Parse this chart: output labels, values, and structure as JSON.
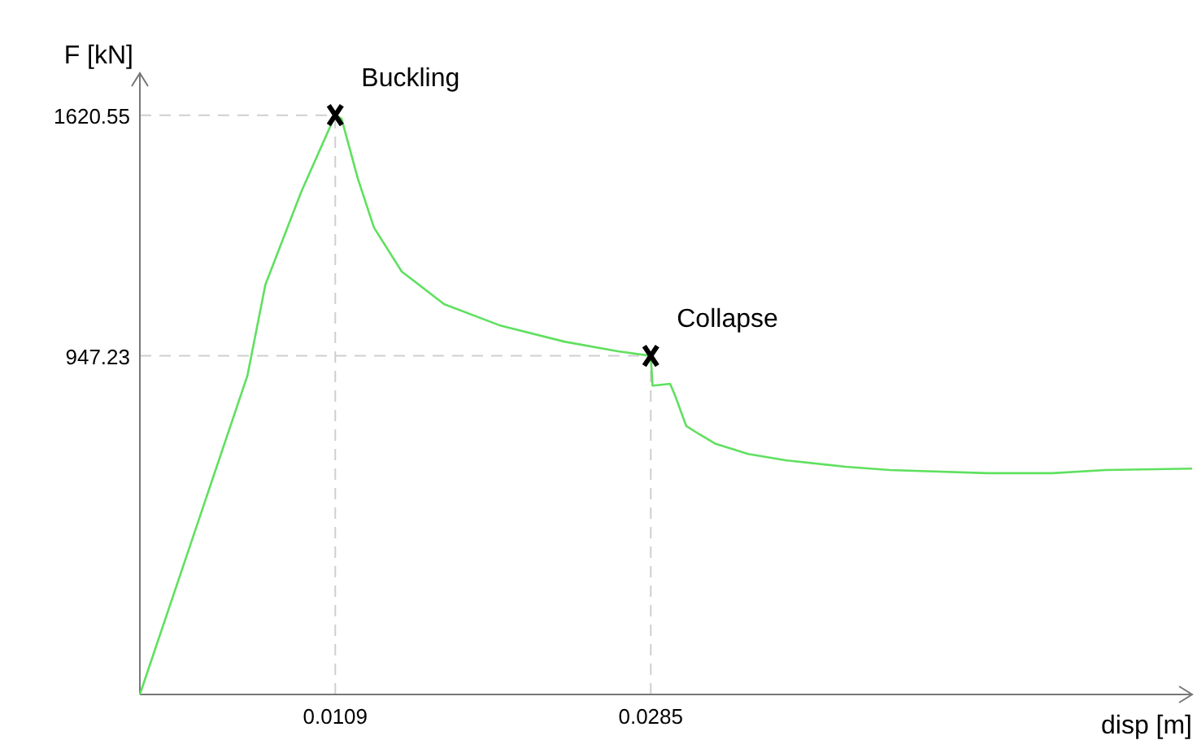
{
  "chart_data": {
    "type": "line",
    "xlabel": "disp [m]",
    "ylabel": "F [kN]",
    "xlim": [
      0,
      0.0587
    ],
    "ylim": [
      0,
      1738
    ],
    "xticks": [
      0.0109,
      0.0285
    ],
    "yticks": [
      947.23,
      1620.55
    ],
    "marker": "none",
    "line_style": "solid",
    "ref_lines": [
      {
        "axis": "y",
        "value": 1620.55,
        "color": "#cfcfcf",
        "line_style": "dashed"
      },
      {
        "axis": "x",
        "value": 0.0109,
        "color": "#cfcfcf",
        "line_style": "dashed"
      },
      {
        "axis": "y",
        "value": 947.23,
        "color": "#cfcfcf",
        "line_style": "dashed"
      },
      {
        "axis": "x",
        "value": 0.0285,
        "color": "#cfcfcf",
        "line_style": "dashed"
      }
    ],
    "annotations": [
      {
        "text": "Buckling",
        "x": 0.0109,
        "y": 1620.55
      },
      {
        "text": "Collapse",
        "x": 0.0285,
        "y": 947.23
      }
    ],
    "series": [
      {
        "color": "#5fe05f",
        "x": [
          0,
          0.006,
          0.007,
          0.009,
          0.0109,
          0.01125,
          0.01216,
          0.01306,
          0.01461,
          0.01697,
          0.02005,
          0.02368,
          0.02667,
          0.0285,
          0.0286,
          0.02958,
          0.02985,
          0.03048,
          0.03121,
          0.03212,
          0.03393,
          0.03602,
          0.03938,
          0.04183,
          0.04727,
          0.0509,
          0.05389,
          0.0587
        ],
        "values": [
          0,
          892,
          1146,
          1406,
          1620.55,
          1611,
          1443,
          1306,
          1183,
          1092,
          1033,
          987,
          960,
          947.23,
          864,
          869,
          837,
          751,
          728,
          701,
          673,
          655,
          637,
          628,
          619,
          619,
          628,
          632
        ]
      }
    ]
  }
}
